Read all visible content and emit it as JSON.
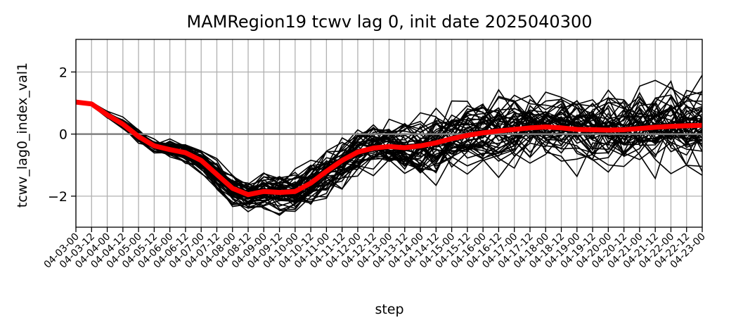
{
  "chart_data": {
    "type": "line",
    "title": "MAMRegion19 tcwv lag 0, init date 2025040300",
    "xlabel": "step",
    "ylabel": "tcwv_lag0_index_val1",
    "x": [
      "04-03-00",
      "04-03-12",
      "04-04-00",
      "04-04-12",
      "04-05-00",
      "04-05-12",
      "04-06-00",
      "04-06-12",
      "04-07-00",
      "04-07-12",
      "04-08-00",
      "04-08-12",
      "04-09-00",
      "04-09-12",
      "04-10-00",
      "04-10-12",
      "04-11-00",
      "04-11-12",
      "04-12-00",
      "04-12-12",
      "04-13-00",
      "04-13-12",
      "04-14-00",
      "04-14-12",
      "04-15-00",
      "04-15-12",
      "04-16-00",
      "04-16-12",
      "04-17-00",
      "04-17-12",
      "04-18-00",
      "04-18-12",
      "04-19-00",
      "04-19-12",
      "04-20-00",
      "04-20-12",
      "04-21-00",
      "04-21-12",
      "04-22-00",
      "04-22-12",
      "04-23-00"
    ],
    "yticks": [
      -2,
      0,
      2
    ],
    "ytick_labels": [
      "−2",
      "0",
      "2"
    ],
    "ylim": [
      -3.0,
      3.05
    ],
    "reference_line": {
      "y": 0,
      "color": "#808080"
    },
    "grid": true,
    "ensemble_color": "#000000",
    "mean_color": "#ff0000",
    "ensemble_members": 50,
    "series_mean": {
      "values": [
        1.03,
        0.97,
        0.62,
        0.32,
        -0.08,
        -0.38,
        -0.5,
        -0.6,
        -0.85,
        -1.3,
        -1.75,
        -1.95,
        -1.85,
        -1.88,
        -1.85,
        -1.58,
        -1.2,
        -0.85,
        -0.58,
        -0.45,
        -0.4,
        -0.44,
        -0.38,
        -0.28,
        -0.15,
        -0.04,
        0.04,
        0.1,
        0.15,
        0.2,
        0.23,
        0.2,
        0.15,
        0.14,
        0.13,
        0.14,
        0.18,
        0.22,
        0.25,
        0.27,
        0.28
      ]
    },
    "series_spread": {
      "values": [
        0.02,
        0.05,
        0.1,
        0.15,
        0.18,
        0.22,
        0.28,
        0.33,
        0.38,
        0.42,
        0.45,
        0.5,
        0.52,
        0.55,
        0.58,
        0.62,
        0.66,
        0.7,
        0.73,
        0.76,
        0.79,
        0.82,
        0.85,
        0.88,
        0.9,
        0.92,
        0.94,
        0.96,
        0.98,
        1.0,
        1.02,
        1.03,
        1.04,
        1.05,
        1.06,
        1.07,
        1.07,
        1.08,
        1.08,
        1.08,
        1.08
      ]
    }
  }
}
